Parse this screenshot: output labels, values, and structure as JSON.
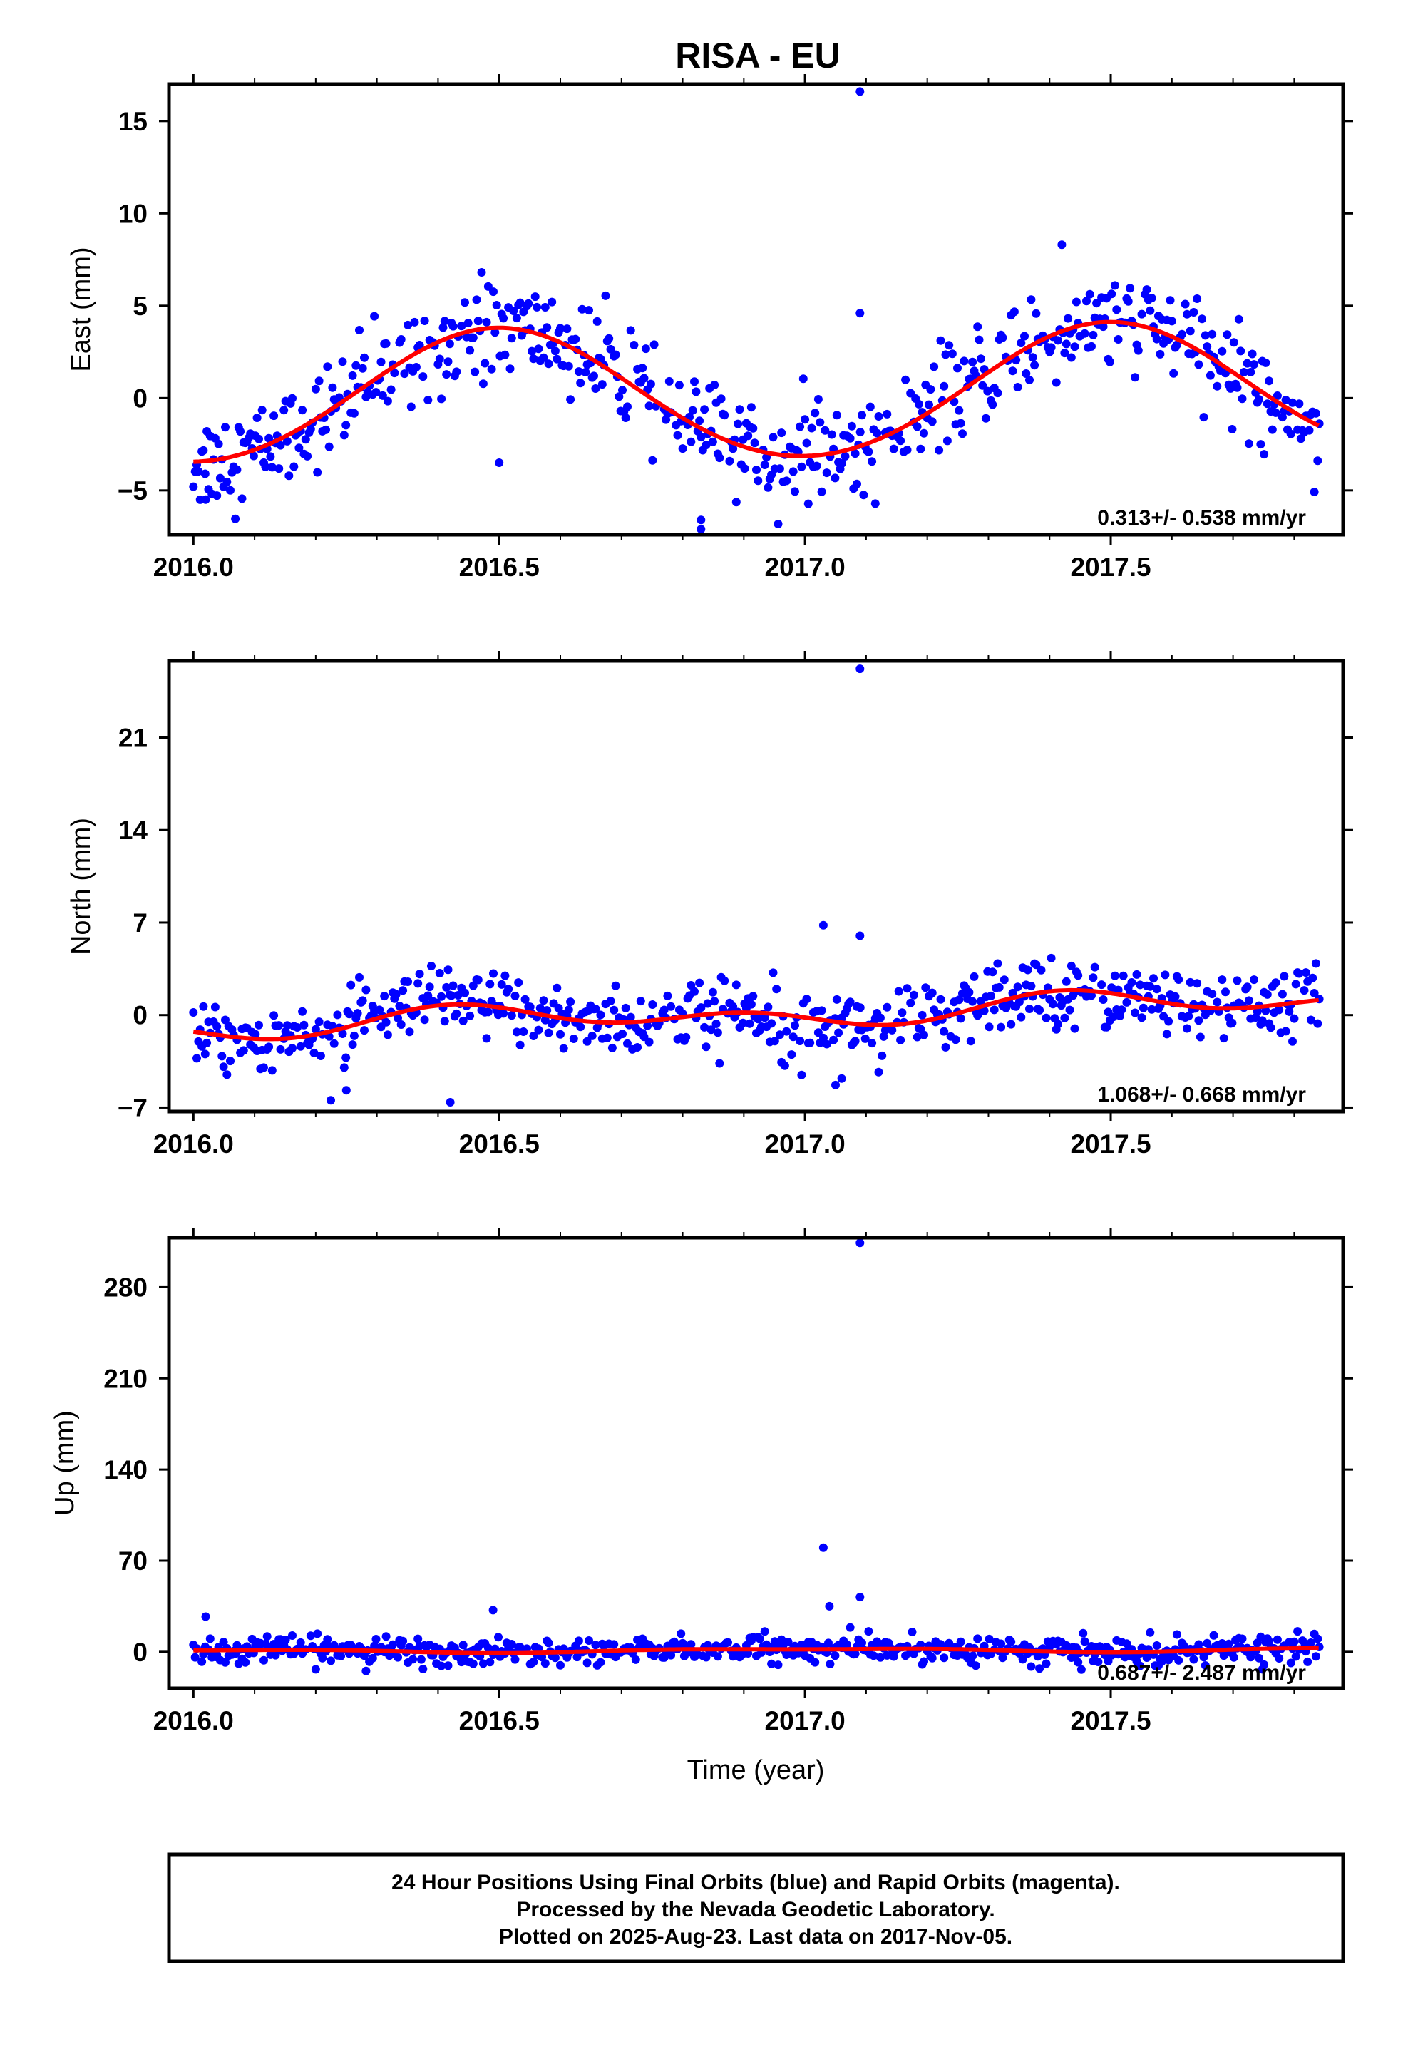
{
  "title": "RISA - EU",
  "xlabel": "Time (year)",
  "footer": {
    "lines": [
      "24 Hour Positions Using Final Orbits (blue) and Rapid Orbits (magenta).",
      "Processed by the Nevada Geodetic Laboratory.",
      "Plotted on 2025-Aug-23. Last data on 2017-Nov-05."
    ]
  },
  "colors": {
    "final_orbits": "#0000ff",
    "rapid_orbits": "#ff00ff",
    "fit": "#ff0000",
    "frame": "#000000"
  },
  "chart_data": [
    {
      "type": "scatter",
      "ylabel": "East (mm)",
      "rate_label": "0.313+/- 0.538 mm/yr",
      "xlim": [
        2015.96,
        2017.88
      ],
      "ylim": [
        -7.4,
        17.0
      ],
      "x_ticks": [
        2016.0,
        2016.5,
        2017.0,
        2017.5
      ],
      "x_tick_labels": [
        "2016.0",
        "2016.5",
        "2017.0",
        "2017.5"
      ],
      "y_ticks": [
        -5,
        0,
        5,
        10,
        15
      ],
      "y_tick_labels": [
        "−5",
        "0",
        "5",
        "10",
        "15"
      ],
      "fit": {
        "rate_mm_per_yr": 0.313,
        "offset": -0.05,
        "annual_sin": 3.35,
        "annual_cos": -0.2,
        "semiannual_sin": 0.0,
        "semiannual_cos": 0.15
      },
      "scatter_sigma": 1.3,
      "outliers": [
        [
          2017.09,
          16.6
        ],
        [
          2017.09,
          4.6
        ],
        [
          2017.42,
          8.3
        ],
        [
          2016.83,
          -6.6
        ],
        [
          2016.83,
          -7.1
        ],
        [
          2016.02,
          -5.5
        ],
        [
          2016.5,
          -3.5
        ]
      ]
    },
    {
      "type": "scatter",
      "ylabel": "North (mm)",
      "rate_label": "1.068+/- 0.668 mm/yr",
      "xlim": [
        2015.96,
        2017.88
      ],
      "ylim": [
        -7.3,
        26.8
      ],
      "x_ticks": [
        2016.0,
        2016.5,
        2017.0,
        2017.5
      ],
      "x_tick_labels": [
        "2016.0",
        "2016.5",
        "2017.0",
        "2017.5"
      ],
      "y_ticks": [
        -7,
        0,
        7,
        14,
        21
      ],
      "y_tick_labels": [
        "−7",
        "0",
        "7",
        "14",
        "21"
      ],
      "fit": {
        "rate_mm_per_yr": 1.068,
        "offset": -0.9,
        "annual_sin": 0.45,
        "annual_cos": -0.2,
        "semiannual_sin": -0.6,
        "semiannual_cos": 0.3
      },
      "scatter_sigma": 1.3,
      "outliers": [
        [
          2017.09,
          26.2
        ],
        [
          2017.03,
          6.8
        ],
        [
          2017.09,
          6.0
        ],
        [
          2017.05,
          -5.3
        ],
        [
          2017.06,
          -4.8
        ],
        [
          2016.42,
          -6.6
        ],
        [
          2016.25,
          -5.7
        ]
      ]
    },
    {
      "type": "scatter",
      "ylabel": "Up (mm)",
      "rate_label": "0.687+/- 2.487 mm/yr",
      "xlim": [
        2015.96,
        2017.88
      ],
      "ylim": [
        -28,
        318
      ],
      "x_ticks": [
        2016.0,
        2016.5,
        2017.0,
        2017.5
      ],
      "x_tick_labels": [
        "2016.0",
        "2016.5",
        "2017.0",
        "2017.5"
      ],
      "y_ticks": [
        0,
        70,
        140,
        210,
        280
      ],
      "y_tick_labels": [
        "0",
        "70",
        "140",
        "210",
        "280"
      ],
      "fit": {
        "rate_mm_per_yr": 0.687,
        "offset": 0.5,
        "annual_sin": 0.5,
        "annual_cos": 1.8,
        "semiannual_sin": 0.0,
        "semiannual_cos": -0.6
      },
      "scatter_sigma": 5.0,
      "outliers": [
        [
          2017.09,
          314
        ],
        [
          2017.03,
          80
        ],
        [
          2017.09,
          42
        ],
        [
          2017.04,
          35
        ],
        [
          2016.49,
          32
        ],
        [
          2016.02,
          27
        ]
      ]
    }
  ]
}
